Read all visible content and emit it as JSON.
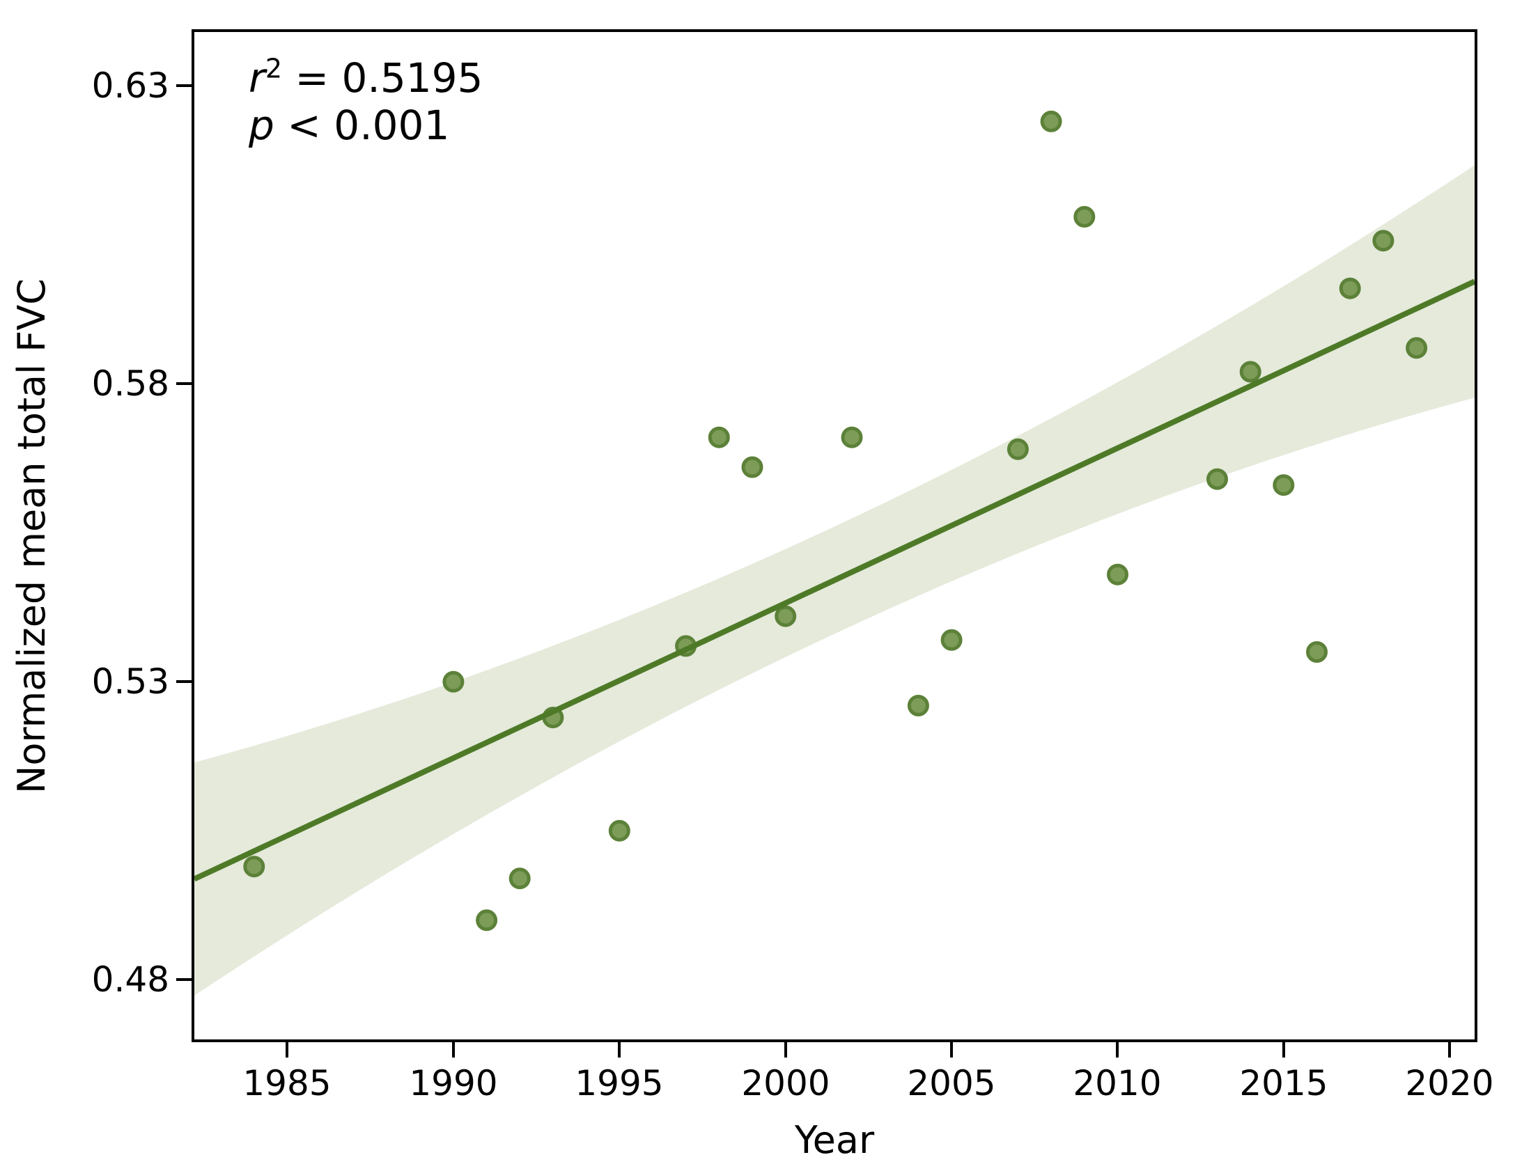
{
  "axes": {
    "xlabel": "Year",
    "ylabel": "Normalized mean total FVC"
  },
  "annotation": {
    "line1_var": "r",
    "line1_sup": "2",
    "line1_rest": " = 0.5195",
    "line2_var": "p",
    "line2_rest": " < 0.001"
  },
  "chart_data": {
    "type": "scatter",
    "title": "",
    "xlabel": "Year",
    "ylabel": "Normalized mean total FVC",
    "xlim": [
      1982.2,
      2020.75
    ],
    "ylim": [
      0.47,
      0.639
    ],
    "x_ticks": [
      1985,
      1990,
      1995,
      2000,
      2005,
      2010,
      2015,
      2020
    ],
    "y_ticks": [
      "0.48",
      "0.53",
      "0.58",
      "0.63"
    ],
    "y_tick_values": [
      0.48,
      0.53,
      0.58,
      0.63
    ],
    "grid": false,
    "legend": "none",
    "points": [
      [
        1984,
        0.499
      ],
      [
        1990,
        0.53
      ],
      [
        1991,
        0.49
      ],
      [
        1992,
        0.497
      ],
      [
        1993,
        0.524
      ],
      [
        1995,
        0.505
      ],
      [
        1997,
        0.536
      ],
      [
        1998,
        0.571
      ],
      [
        1999,
        0.566
      ],
      [
        2000,
        0.541
      ],
      [
        2002,
        0.571
      ],
      [
        2004,
        0.526
      ],
      [
        2005,
        0.537
      ],
      [
        2007,
        0.569
      ],
      [
        2008,
        0.624
      ],
      [
        2009,
        0.608
      ],
      [
        2010,
        0.548
      ],
      [
        2013,
        0.564
      ],
      [
        2014,
        0.582
      ],
      [
        2015,
        0.563
      ],
      [
        2016,
        0.535
      ],
      [
        2017,
        0.596
      ],
      [
        2018,
        0.604
      ],
      [
        2019,
        0.586
      ]
    ],
    "trendline": {
      "slope_per_year": 0.0026,
      "center_year": 2001.5,
      "value_at_center": 0.5471
    },
    "confidence_band": {
      "halfwidth_center": 0.009,
      "halfwidth_curve": 0.0105,
      "halfwidth_span_years": 19.25
    },
    "stats": {
      "r_squared": 0.5195,
      "p_value": "< 0.001"
    },
    "colors": {
      "regression_line": "#4e7a28",
      "point_fill": "#7d9c57",
      "point_edge": "#5c8138",
      "confidence_band": "#e5eadb",
      "axis": "#000000"
    }
  }
}
